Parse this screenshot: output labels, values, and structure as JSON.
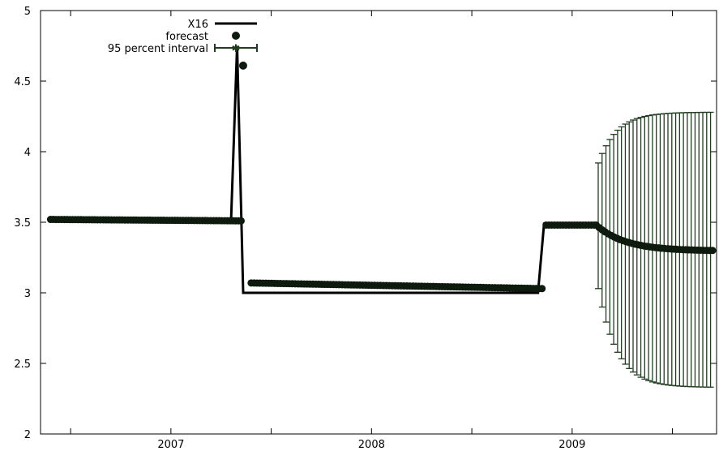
{
  "chart_data": {
    "type": "line",
    "title": "",
    "xlabel": "",
    "ylabel": "",
    "ylim": [
      2,
      5
    ],
    "yticks": [
      "2",
      "2.5",
      "3",
      "3.5",
      "4",
      "4.5",
      "5"
    ],
    "xlim": [
      2006.35,
      2009.72
    ],
    "xticks": [
      {
        "value": 2007.0,
        "label": "2007"
      },
      {
        "value": 2008.0,
        "label": "2008"
      },
      {
        "value": 2009.0,
        "label": "2009"
      }
    ],
    "grid": false,
    "legend_position": "top-left",
    "legend": {
      "x16": "X16",
      "forecast": "forecast",
      "interval": "95 percent interval"
    },
    "colors": {
      "line": "#000000",
      "forecast": "#0d1a0d",
      "interval": "#1f3d1f"
    },
    "series": [
      {
        "name": "X16",
        "kind": "line",
        "points": [
          [
            2006.4,
            3.52
          ],
          [
            2007.3,
            3.52
          ],
          [
            2007.33,
            4.75
          ],
          [
            2007.36,
            3.0
          ],
          [
            2008.83,
            3.0
          ],
          [
            2008.86,
            3.49
          ],
          [
            2009.12,
            3.49
          ]
        ]
      },
      {
        "name": "forecast",
        "kind": "points",
        "segments": [
          {
            "x_start": 2006.4,
            "x_end": 2007.35,
            "y_start": 3.52,
            "y_end": 3.51,
            "count": 70
          },
          {
            "x_start": 2007.4,
            "x_end": 2008.85,
            "y_start": 3.07,
            "y_end": 3.03,
            "count": 100
          },
          {
            "x_start": 2008.87,
            "x_end": 2009.11,
            "y_start": 3.48,
            "y_end": 3.48,
            "count": 18
          },
          {
            "x_start": 2009.12,
            "x_end": 2009.7,
            "y_start": 3.48,
            "y_end": 3.3,
            "count": 40,
            "curve": "decay"
          }
        ],
        "outlier": [
          2007.36,
          4.61
        ]
      },
      {
        "name": "95 percent interval",
        "kind": "errorbars",
        "x_start": 2009.13,
        "x_end": 2009.69,
        "count": 30,
        "lower_start": 3.03,
        "lower_end": 2.33,
        "upper_start": 3.92,
        "upper_end": 4.28
      }
    ]
  }
}
